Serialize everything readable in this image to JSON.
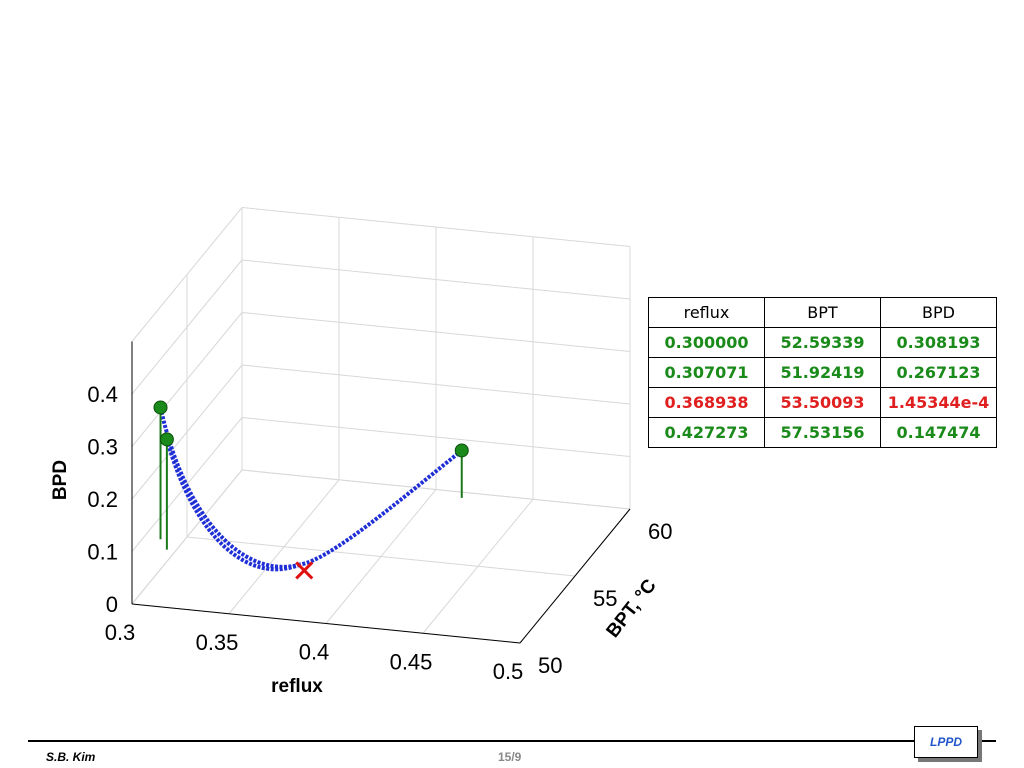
{
  "chart_data": {
    "type": "line3d",
    "xlabel": "reflux",
    "ylabel": "BPT, °C",
    "zlabel": "BPD",
    "xlim": [
      0.3,
      0.5
    ],
    "ylim": [
      50,
      60
    ],
    "zlim": [
      0,
      0.5
    ],
    "x_ticks": [
      "0.3",
      "0.35",
      "0.4",
      "0.45",
      "0.5"
    ],
    "y_ticks": [
      "50",
      "55",
      "60"
    ],
    "z_ticks": [
      "0",
      "0.1",
      "0.2",
      "0.3",
      "0.4"
    ],
    "grid": true,
    "series": [
      {
        "x": [
          0.3,
          0.368938
        ],
        "y": [
          52.59339,
          53.50093
        ],
        "z": [
          0.308193,
          0.000145344
        ]
      },
      {
        "x": [
          0.307071,
          0.368938
        ],
        "y": [
          51.92419,
          53.50093
        ],
        "z": [
          0.267123,
          0.000145344
        ]
      },
      {
        "x": [
          0.427273,
          0.368938
        ],
        "y": [
          57.53156,
          53.50093
        ],
        "z": [
          0.147474,
          0.000145344
        ]
      }
    ],
    "start_points": [
      {
        "x": 0.3,
        "y": 52.59339,
        "z": 0.308193
      },
      {
        "x": 0.307071,
        "y": 51.92419,
        "z": 0.267123
      },
      {
        "x": 0.427273,
        "y": 57.53156,
        "z": 0.147474
      }
    ],
    "optimum": {
      "x": 0.368938,
      "y": 53.50093,
      "z": 0.000145344
    }
  },
  "table": {
    "headers": [
      "reflux",
      "BPT",
      "BPD"
    ],
    "rows": [
      {
        "cells": [
          "0.300000",
          "52.59339",
          "0.308193"
        ],
        "color": "#1a8a1a"
      },
      {
        "cells": [
          "0.307071",
          "51.92419",
          "0.267123"
        ],
        "color": "#1a8a1a"
      },
      {
        "cells": [
          "0.368938",
          "53.50093",
          "1.45344e-4"
        ],
        "color": "#e02020"
      },
      {
        "cells": [
          "0.427273",
          "57.53156",
          "0.147474"
        ],
        "color": "#1a8a1a"
      }
    ]
  },
  "footer": {
    "author": "S.B. Kim",
    "page": "15/9",
    "logo": "LPPD"
  }
}
